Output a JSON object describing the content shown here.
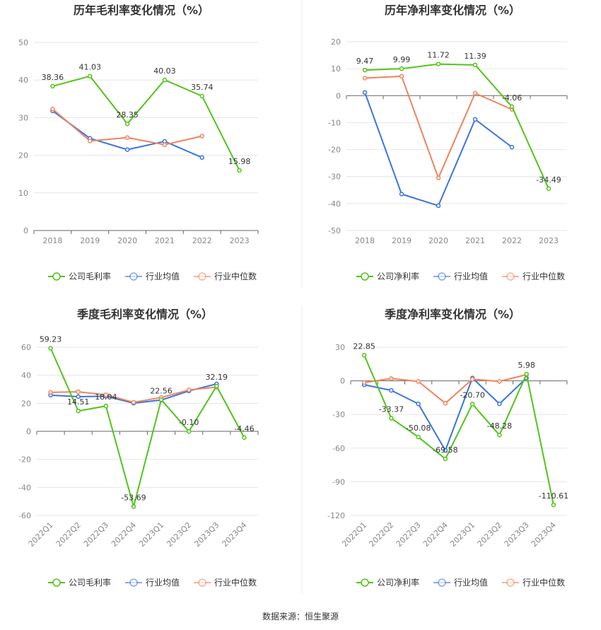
{
  "source_label": "数据来源：恒生聚源",
  "colors": {
    "company": "#52c41a",
    "avg": "#3b74e0",
    "median": "#f0845c"
  },
  "chart_data": [
    {
      "type": "line",
      "title": "历年毛利率变化情况（%）",
      "categories": [
        "2018",
        "2019",
        "2020",
        "2021",
        "2022",
        "2023"
      ],
      "ylim": [
        0,
        50
      ],
      "yticks": [
        0,
        10,
        20,
        30,
        40,
        50
      ],
      "rotate_labels": false,
      "grid": true,
      "legend": "bottom",
      "series": [
        {
          "name": "公司毛利率",
          "role": "company",
          "values": [
            38.36,
            41.03,
            28.35,
            40.03,
            35.74,
            15.98
          ],
          "labels": [
            "38.36",
            "41.03",
            "28.35",
            "40.03",
            "35.74",
            "15.98"
          ]
        },
        {
          "name": "行业均值",
          "role": "avg",
          "values": [
            31.8,
            24.5,
            21.5,
            23.7,
            19.4,
            null
          ]
        },
        {
          "name": "行业中位数",
          "role": "median",
          "values": [
            32.3,
            23.8,
            24.7,
            22.8,
            25.1,
            null
          ]
        }
      ]
    },
    {
      "type": "line",
      "title": "历年净利率变化情况（%）",
      "categories": [
        "2018",
        "2019",
        "2020",
        "2021",
        "2022",
        "2023"
      ],
      "ylim": [
        -50,
        20
      ],
      "yticks": [
        -50,
        -40,
        -30,
        -20,
        -10,
        0,
        10,
        20
      ],
      "rotate_labels": false,
      "grid": true,
      "legend": "bottom",
      "series": [
        {
          "name": "公司净利率",
          "role": "company",
          "values": [
            9.47,
            9.99,
            11.72,
            11.39,
            -4.06,
            -34.49
          ],
          "labels": [
            "9.47",
            "9.99",
            "11.72",
            "11.39",
            "-4.06",
            "-34.49"
          ]
        },
        {
          "name": "行业均值",
          "role": "avg",
          "values": [
            1.2,
            -36.5,
            -40.8,
            -8.8,
            -19.1,
            null
          ]
        },
        {
          "name": "行业中位数",
          "role": "median",
          "values": [
            6.5,
            7.2,
            -30.5,
            0.9,
            -5.1,
            null
          ]
        }
      ]
    },
    {
      "type": "line",
      "title": "季度毛利率变化情况（%）",
      "categories": [
        "2022Q1",
        "2022Q2",
        "2022Q3",
        "2022Q4",
        "2023Q1",
        "2023Q2",
        "2023Q3",
        "2023Q4"
      ],
      "ylim": [
        -60,
        60
      ],
      "yticks": [
        -60,
        -40,
        -20,
        0,
        20,
        40,
        60
      ],
      "rotate_labels": true,
      "grid": true,
      "legend": "bottom",
      "series": [
        {
          "name": "公司毛利率",
          "role": "company",
          "values": [
            59.23,
            14.51,
            18.04,
            -53.69,
            22.56,
            -0.1,
            32.19,
            -4.46
          ],
          "labels": [
            "59.23",
            "14.51",
            "18.04",
            "-53.69",
            "22.56",
            "-0.10",
            "32.19",
            "-4.46"
          ]
        },
        {
          "name": "行业均值",
          "role": "avg",
          "values": [
            25.8,
            24.7,
            25.0,
            20.1,
            22.3,
            28.8,
            33.8,
            null
          ]
        },
        {
          "name": "行业中位数",
          "role": "median",
          "values": [
            27.8,
            28.2,
            26.0,
            20.7,
            24.1,
            29.5,
            31.5,
            null
          ]
        }
      ]
    },
    {
      "type": "line",
      "title": "季度净利率变化情况（%）",
      "categories": [
        "2022Q1",
        "2022Q2",
        "2022Q3",
        "2022Q4",
        "2023Q1",
        "2023Q2",
        "2023Q3",
        "2023Q4"
      ],
      "ylim": [
        -120,
        30
      ],
      "yticks": [
        -120,
        -90,
        -60,
        -30,
        0,
        30
      ],
      "rotate_labels": true,
      "grid": true,
      "legend": "bottom",
      "series": [
        {
          "name": "公司净利率",
          "role": "company",
          "values": [
            22.85,
            -33.37,
            -50.08,
            -69.58,
            -20.7,
            -48.28,
            5.98,
            -110.61
          ],
          "labels": [
            "22.85",
            "-33.37",
            "-50.08",
            "-69.58",
            "-20.70",
            "-48.28",
            "5.98",
            "-110.61"
          ]
        },
        {
          "name": "行业均值",
          "role": "avg",
          "values": [
            -3.5,
            -8.5,
            -20.5,
            -62.0,
            2.5,
            -20.5,
            2.5,
            null
          ]
        },
        {
          "name": "行业中位数",
          "role": "median",
          "values": [
            -1.5,
            2.0,
            -0.5,
            -20.0,
            1.5,
            -0.5,
            5.5,
            null
          ]
        }
      ]
    }
  ]
}
